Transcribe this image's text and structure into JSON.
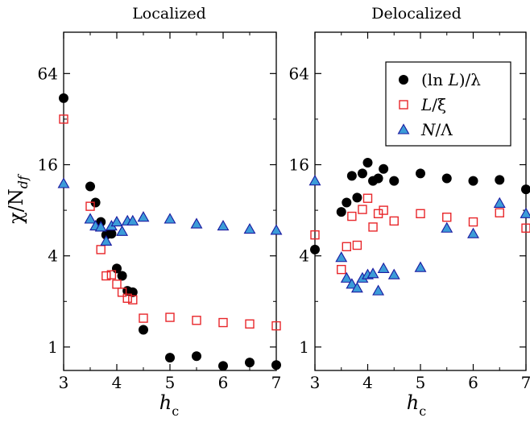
{
  "chart_data": {
    "type": "scatter",
    "ylabel": "χ/N_df",
    "xlabel": "h_c",
    "yscale": "log2",
    "xlim": [
      3,
      7
    ],
    "ylim": [
      0.7,
      120
    ],
    "yticks": [
      1,
      4,
      16,
      64
    ],
    "xticks": [
      3,
      4,
      5,
      6,
      7
    ],
    "colors": {
      "circle": "#000000",
      "square": "#e8262a",
      "triangle_fill": "#3c9cd8",
      "triangle_edge": "#1a1aa0"
    },
    "legend": {
      "placement": "top-right of right panel",
      "entries": [
        {
          "marker": "circle",
          "pre": "(ln ",
          "var": "L",
          "post": ")/λ"
        },
        {
          "marker": "square",
          "pre": "",
          "var": "L",
          "post": "/ξ"
        },
        {
          "marker": "triangle",
          "pre": "",
          "var": "N",
          "post": "/Λ"
        }
      ]
    },
    "panels": [
      {
        "title": "Localized",
        "series": [
          {
            "marker": "circle",
            "points": [
              [
                3.0,
                44
              ],
              [
                3.5,
                11.5
              ],
              [
                3.6,
                9
              ],
              [
                3.7,
                6.7
              ],
              [
                3.8,
                5.5
              ],
              [
                3.9,
                5.6
              ],
              [
                4.0,
                3.3
              ],
              [
                4.1,
                2.95
              ],
              [
                4.2,
                2.35
              ],
              [
                4.3,
                2.3
              ],
              [
                4.5,
                1.3
              ],
              [
                5.0,
                0.85
              ],
              [
                5.5,
                0.87
              ],
              [
                6.0,
                0.75
              ],
              [
                6.5,
                0.79
              ],
              [
                7.0,
                0.76
              ]
            ]
          },
          {
            "marker": "square",
            "points": [
              [
                3.0,
                32
              ],
              [
                3.5,
                8.5
              ],
              [
                3.7,
                4.4
              ],
              [
                3.8,
                2.95
              ],
              [
                3.9,
                3.0
              ],
              [
                4.0,
                2.6
              ],
              [
                4.1,
                2.3
              ],
              [
                4.2,
                2.1
              ],
              [
                4.3,
                2.05
              ],
              [
                4.5,
                1.55
              ],
              [
                5.0,
                1.57
              ],
              [
                5.5,
                1.5
              ],
              [
                6.0,
                1.45
              ],
              [
                6.5,
                1.42
              ],
              [
                7.0,
                1.38
              ]
            ]
          },
          {
            "marker": "triangle",
            "points": [
              [
                3.0,
                12
              ],
              [
                3.5,
                7
              ],
              [
                3.6,
                6.3
              ],
              [
                3.7,
                6.2
              ],
              [
                3.8,
                5.0
              ],
              [
                3.9,
                6.3
              ],
              [
                4.0,
                6.7
              ],
              [
                4.1,
                5.8
              ],
              [
                4.2,
                6.8
              ],
              [
                4.3,
                6.8
              ],
              [
                4.5,
                7.2
              ],
              [
                5.0,
                7.0
              ],
              [
                5.5,
                6.5
              ],
              [
                6.0,
                6.3
              ],
              [
                6.5,
                6.0
              ],
              [
                7.0,
                5.9
              ]
            ]
          }
        ]
      },
      {
        "title": "Delocalized",
        "series": [
          {
            "marker": "circle",
            "points": [
              [
                3.0,
                4.4
              ],
              [
                3.5,
                7.8
              ],
              [
                3.6,
                9
              ],
              [
                3.7,
                13.5
              ],
              [
                3.8,
                9.7
              ],
              [
                3.9,
                14
              ],
              [
                4.0,
                16.5
              ],
              [
                4.1,
                12.5
              ],
              [
                4.2,
                13
              ],
              [
                4.3,
                15
              ],
              [
                4.5,
                12.5
              ],
              [
                5.0,
                14
              ],
              [
                5.5,
                13
              ],
              [
                6.0,
                12.5
              ],
              [
                6.5,
                12.7
              ],
              [
                7.0,
                11
              ]
            ]
          },
          {
            "marker": "square",
            "points": [
              [
                3.0,
                5.5
              ],
              [
                3.5,
                3.25
              ],
              [
                3.6,
                4.6
              ],
              [
                3.7,
                7.3
              ],
              [
                3.8,
                4.7
              ],
              [
                3.9,
                8.1
              ],
              [
                4.0,
                9.6
              ],
              [
                4.1,
                6.2
              ],
              [
                4.2,
                7.6
              ],
              [
                4.3,
                8.0
              ],
              [
                4.5,
                6.8
              ],
              [
                5.0,
                7.6
              ],
              [
                5.5,
                7.2
              ],
              [
                6.0,
                6.7
              ],
              [
                6.5,
                7.7
              ],
              [
                7.0,
                6.1
              ]
            ]
          },
          {
            "marker": "triangle",
            "points": [
              [
                3.0,
                12.5
              ],
              [
                3.5,
                3.9
              ],
              [
                3.6,
                2.85
              ],
              [
                3.7,
                2.6
              ],
              [
                3.8,
                2.45
              ],
              [
                3.9,
                2.85
              ],
              [
                4.0,
                3.0
              ],
              [
                4.1,
                3.05
              ],
              [
                4.2,
                2.35
              ],
              [
                4.3,
                3.3
              ],
              [
                4.5,
                3.0
              ],
              [
                5.0,
                3.35
              ],
              [
                5.5,
                6.1
              ],
              [
                6.0,
                5.6
              ],
              [
                6.5,
                8.9
              ],
              [
                7.0,
                7.6
              ]
            ]
          }
        ]
      }
    ]
  }
}
